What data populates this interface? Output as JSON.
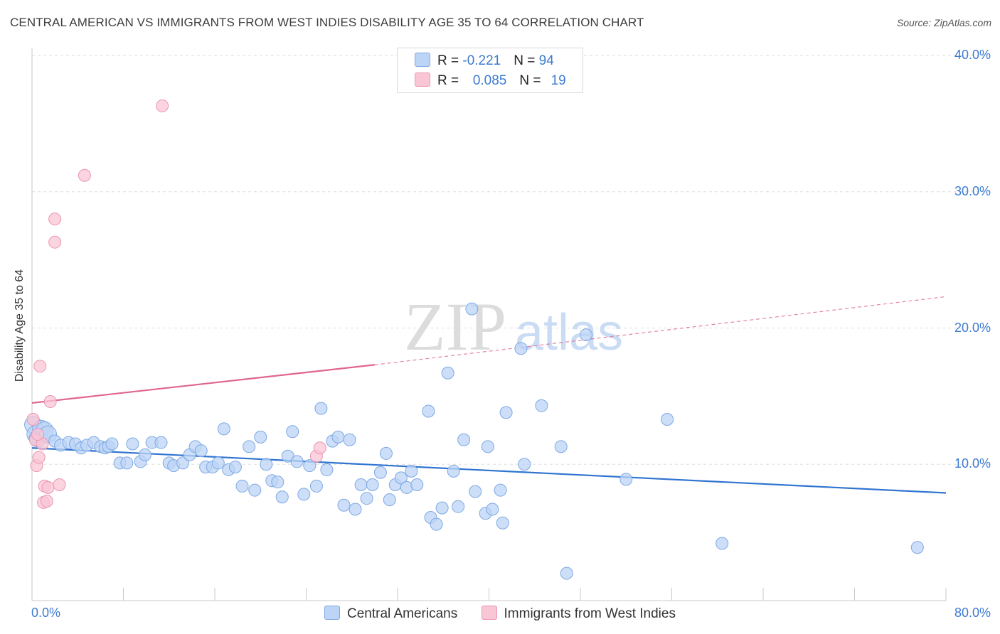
{
  "header": {
    "title": "CENTRAL AMERICAN VS IMMIGRANTS FROM WEST INDIES DISABILITY AGE 35 TO 64 CORRELATION CHART",
    "source": "Source: ZipAtlas.com"
  },
  "watermark": {
    "zip": "ZIP",
    "atlas": "atlas"
  },
  "stats": {
    "rows": [
      {
        "r_label": "R = ",
        "r_value": "-0.221",
        "n_label": "N = ",
        "n_value": "94",
        "color": "#bcd4f6"
      },
      {
        "r_label": "R = ",
        "r_value": "0.085",
        "n_label": "N = ",
        "n_value": "19",
        "color": "#f9c6d6"
      }
    ]
  },
  "legend": {
    "items": [
      "Central Americans",
      "Immigrants from West Indies"
    ]
  },
  "colors": {
    "blue_fill": "#bcd4f6",
    "blue_stroke": "#7ea8e4",
    "blue_line": "#2f74d0",
    "pink_fill": "#f9c6d6",
    "pink_stroke": "#eb96b2",
    "pink_line": "#e0648f",
    "tick_text": "#3d7bd1"
  },
  "chart_data": {
    "type": "scatter",
    "title": "CENTRAL AMERICAN VS IMMIGRANTS FROM WEST INDIES DISABILITY AGE 35 TO 64 CORRELATION CHART",
    "xlabel": "",
    "ylabel": "Disability Age 35 to 64",
    "xlim": [
      0,
      80
    ],
    "ylim": [
      0,
      40
    ],
    "x_tick_labels": [
      "0.0%",
      "80.0%"
    ],
    "y_ticks": [
      10,
      20,
      30,
      40
    ],
    "y_tick_labels": [
      "10.0%",
      "20.0%",
      "30.0%",
      "40.0%"
    ],
    "grid": true,
    "legend_position": "bottom-center",
    "series": [
      {
        "name": "Central Americans",
        "r": -0.221,
        "n": 94,
        "trend": {
          "x": [
            0,
            80
          ],
          "y": [
            11.2,
            7.9
          ]
        },
        "points": [
          [
            0.1,
            12.9
          ],
          [
            0.3,
            12.2
          ],
          [
            0.5,
            11.9
          ],
          [
            0.8,
            12.6
          ],
          [
            1.1,
            12.5
          ],
          [
            1.4,
            12.2
          ],
          [
            2.0,
            11.7
          ],
          [
            2.5,
            11.4
          ],
          [
            3.2,
            11.6
          ],
          [
            3.8,
            11.5
          ],
          [
            4.3,
            11.2
          ],
          [
            4.8,
            11.4
          ],
          [
            5.4,
            11.6
          ],
          [
            6.0,
            11.3
          ],
          [
            6.4,
            11.2
          ],
          [
            6.7,
            11.3
          ],
          [
            7.0,
            11.5
          ],
          [
            7.7,
            10.1
          ],
          [
            8.3,
            10.1
          ],
          [
            8.8,
            11.5
          ],
          [
            9.5,
            10.2
          ],
          [
            9.9,
            10.7
          ],
          [
            10.5,
            11.6
          ],
          [
            11.3,
            11.6
          ],
          [
            12.0,
            10.1
          ],
          [
            12.4,
            9.9
          ],
          [
            13.2,
            10.1
          ],
          [
            13.8,
            10.7
          ],
          [
            14.3,
            11.3
          ],
          [
            14.8,
            11.0
          ],
          [
            15.2,
            9.8
          ],
          [
            15.8,
            9.8
          ],
          [
            16.3,
            10.1
          ],
          [
            16.8,
            12.6
          ],
          [
            17.2,
            9.6
          ],
          [
            17.8,
            9.8
          ],
          [
            18.4,
            8.4
          ],
          [
            19.0,
            11.3
          ],
          [
            19.5,
            8.1
          ],
          [
            20.0,
            12.0
          ],
          [
            20.5,
            10.0
          ],
          [
            21.0,
            8.8
          ],
          [
            21.5,
            8.7
          ],
          [
            21.9,
            7.6
          ],
          [
            22.4,
            10.6
          ],
          [
            22.8,
            12.4
          ],
          [
            23.2,
            10.2
          ],
          [
            23.8,
            7.8
          ],
          [
            24.3,
            9.9
          ],
          [
            24.9,
            8.4
          ],
          [
            25.3,
            14.1
          ],
          [
            25.8,
            9.6
          ],
          [
            26.3,
            11.7
          ],
          [
            26.8,
            12.0
          ],
          [
            27.3,
            7.0
          ],
          [
            27.8,
            11.8
          ],
          [
            28.3,
            6.7
          ],
          [
            28.8,
            8.5
          ],
          [
            29.3,
            7.5
          ],
          [
            29.8,
            8.5
          ],
          [
            30.5,
            9.4
          ],
          [
            31.0,
            10.8
          ],
          [
            31.3,
            7.4
          ],
          [
            31.8,
            8.5
          ],
          [
            32.3,
            9.0
          ],
          [
            32.8,
            8.3
          ],
          [
            33.2,
            9.5
          ],
          [
            33.7,
            8.5
          ],
          [
            34.7,
            13.9
          ],
          [
            34.9,
            6.1
          ],
          [
            35.4,
            5.6
          ],
          [
            35.9,
            6.8
          ],
          [
            36.4,
            16.7
          ],
          [
            36.9,
            9.5
          ],
          [
            37.3,
            6.9
          ],
          [
            37.8,
            11.8
          ],
          [
            38.5,
            21.4
          ],
          [
            38.8,
            8.0
          ],
          [
            39.7,
            6.4
          ],
          [
            39.9,
            11.3
          ],
          [
            40.3,
            6.7
          ],
          [
            41.0,
            8.1
          ],
          [
            41.2,
            5.7
          ],
          [
            41.5,
            13.8
          ],
          [
            42.8,
            18.5
          ],
          [
            43.1,
            10.0
          ],
          [
            44.6,
            14.3
          ],
          [
            46.3,
            11.3
          ],
          [
            46.8,
            2.0
          ],
          [
            48.5,
            19.5
          ],
          [
            52.0,
            8.9
          ],
          [
            55.6,
            13.3
          ],
          [
            60.4,
            4.2
          ],
          [
            77.5,
            3.9
          ]
        ]
      },
      {
        "name": "Immigrants from West Indies",
        "r": 0.085,
        "n": 19,
        "trend": {
          "x": [
            0,
            30
          ],
          "y": [
            14.5,
            17.3
          ]
        },
        "trend_extension": {
          "x": [
            30,
            80
          ],
          "y": [
            17.3,
            22.3
          ]
        },
        "points": [
          [
            0.1,
            13.3
          ],
          [
            0.3,
            11.8
          ],
          [
            0.4,
            9.9
          ],
          [
            0.6,
            10.5
          ],
          [
            0.7,
            17.2
          ],
          [
            0.9,
            11.5
          ],
          [
            1.0,
            7.2
          ],
          [
            1.1,
            8.4
          ],
          [
            1.3,
            7.3
          ],
          [
            1.4,
            8.3
          ],
          [
            1.6,
            14.6
          ],
          [
            2.0,
            26.3
          ],
          [
            2.0,
            28.0
          ],
          [
            2.4,
            8.5
          ],
          [
            4.6,
            31.2
          ],
          [
            11.4,
            36.3
          ],
          [
            24.9,
            10.6
          ],
          [
            25.2,
            11.2
          ],
          [
            0.5,
            12.2
          ]
        ]
      }
    ]
  }
}
